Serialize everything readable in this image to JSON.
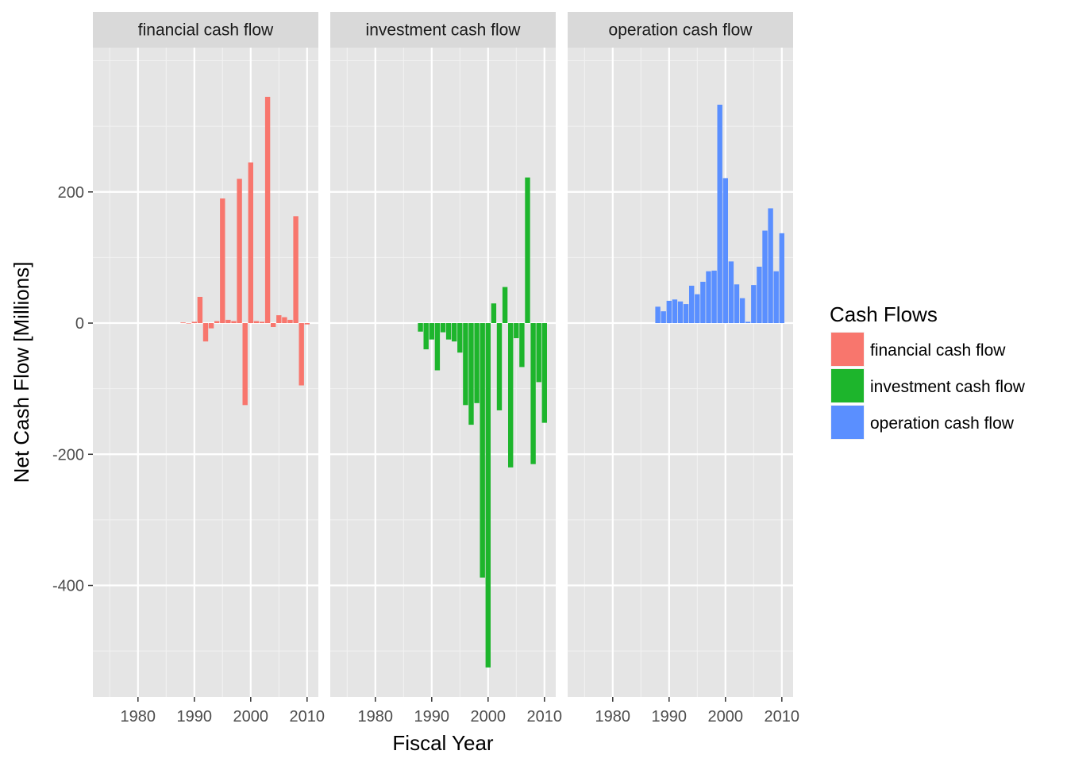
{
  "chart_data": {
    "type": "bar",
    "faceted": true,
    "xlabel": "Fiscal Year",
    "ylabel": "Net Cash Flow [Millions]",
    "xlim": [
      1972,
      2012
    ],
    "ylim": [
      -570,
      420
    ],
    "x_ticks": [
      1980,
      1990,
      2000,
      2010
    ],
    "y_ticks": [
      -400,
      -200,
      0,
      200
    ],
    "background": "#e5e5e5",
    "grid": true,
    "legend": {
      "title": "Cash Flows",
      "position": "right",
      "entries": [
        {
          "label": "financial cash flow",
          "color": "#F8766D"
        },
        {
          "label": "investment cash flow",
          "color": "#1DB52C"
        },
        {
          "label": "operation cash flow",
          "color": "#5A8FFF"
        }
      ]
    },
    "x": [
      1988,
      1989,
      1990,
      1991,
      1992,
      1993,
      1994,
      1995,
      1996,
      1997,
      1998,
      1999,
      2000,
      2001,
      2002,
      2003,
      2004,
      2005,
      2006,
      2007,
      2008,
      2009,
      2010
    ],
    "series": [
      {
        "name": "financial cash flow",
        "color": "#F8766D",
        "values": [
          1,
          0,
          2,
          40,
          -28,
          -8,
          3,
          190,
          5,
          3,
          220,
          -125,
          245,
          3,
          2,
          345,
          -6,
          12,
          9,
          5,
          163,
          -95,
          -2
        ]
      },
      {
        "name": "investment cash flow",
        "color": "#1DB52C",
        "values": [
          -13,
          -40,
          -25,
          -72,
          -14,
          -25,
          -28,
          -45,
          -125,
          -155,
          -122,
          -388,
          -525,
          30,
          -133,
          55,
          -220,
          -23,
          -67,
          222,
          -215,
          -90,
          -152
        ]
      },
      {
        "name": "operation cash flow",
        "color": "#5A8FFF",
        "values": [
          25,
          18,
          34,
          36,
          33,
          29,
          57,
          44,
          63,
          79,
          80,
          333,
          221,
          94,
          59,
          38,
          2,
          58,
          86,
          141,
          175,
          79,
          137
        ]
      }
    ]
  }
}
